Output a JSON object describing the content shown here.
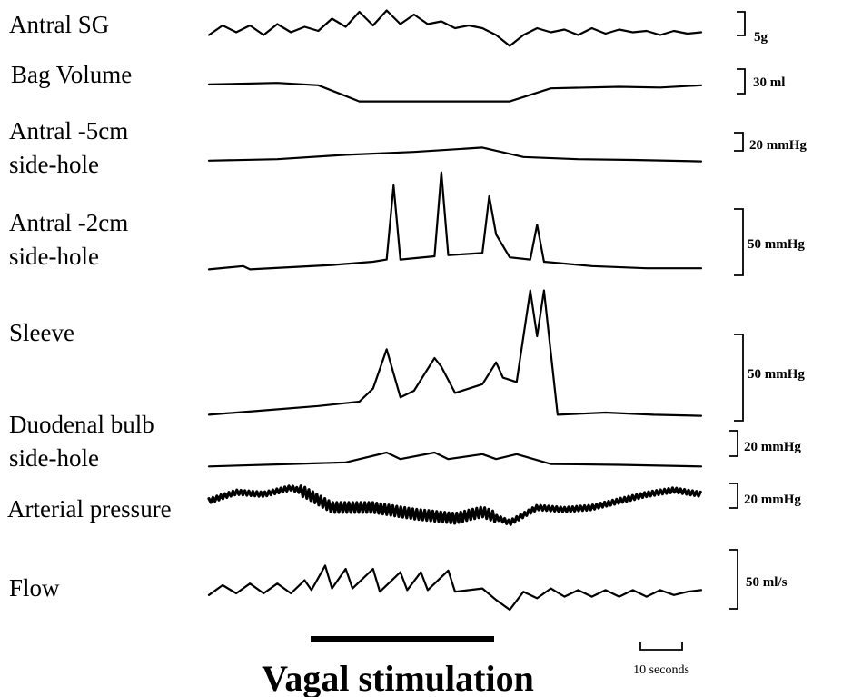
{
  "chart_data": {
    "type": "line",
    "x_unit": "seconds",
    "x_range": [
      0,
      95
    ],
    "stimulation": {
      "label": "Vagal stimulation",
      "start": 14,
      "end": 39
    },
    "time_scale": {
      "label": "10 seconds",
      "value": 10
    },
    "series": [
      {
        "name": "Antral SG",
        "scale": "5g",
        "amp": 6,
        "pts": [
          [
            0,
            2.2
          ],
          [
            2,
            3.6
          ],
          [
            4,
            2.6
          ],
          [
            6,
            3.6
          ],
          [
            8,
            2.2
          ],
          [
            10,
            3.8
          ],
          [
            12,
            2.6
          ],
          [
            14,
            3.4
          ],
          [
            16,
            2.8
          ],
          [
            18,
            4.6
          ],
          [
            20,
            3.4
          ],
          [
            22,
            5.6
          ],
          [
            24,
            3.6
          ],
          [
            26,
            5.8
          ],
          [
            28,
            3.8
          ],
          [
            30,
            5.2
          ],
          [
            32,
            3.8
          ],
          [
            34,
            4.2
          ],
          [
            36,
            3.2
          ],
          [
            38,
            3.6
          ],
          [
            40,
            3.2
          ],
          [
            42,
            2.2
          ],
          [
            44,
            0.6
          ],
          [
            46,
            2.2
          ],
          [
            48,
            3.2
          ],
          [
            50,
            2.6
          ],
          [
            52,
            3.0
          ],
          [
            54,
            2.2
          ],
          [
            56,
            3.2
          ],
          [
            58,
            2.4
          ],
          [
            60,
            3.0
          ],
          [
            62,
            2.6
          ],
          [
            64,
            2.8
          ],
          [
            66,
            2.2
          ],
          [
            68,
            2.8
          ],
          [
            70,
            2.4
          ],
          [
            72,
            2.6
          ]
        ]
      },
      {
        "name": "Bag Volume",
        "scale": "30 ml",
        "amp": 4,
        "pts": [
          [
            0,
            2.6
          ],
          [
            10,
            2.8
          ],
          [
            16,
            2.5
          ],
          [
            22,
            0.4
          ],
          [
            44,
            0.4
          ],
          [
            50,
            2.1
          ],
          [
            60,
            2.3
          ],
          [
            66,
            2.2
          ],
          [
            72,
            2.5
          ]
        ]
      },
      {
        "name": "Antral -5cm side-hole",
        "scale": "20 mmHg",
        "amp": 4,
        "pts": [
          [
            0,
            0.4
          ],
          [
            10,
            0.6
          ],
          [
            20,
            1.2
          ],
          [
            30,
            1.6
          ],
          [
            40,
            2.2
          ],
          [
            46,
            0.9
          ],
          [
            54,
            0.6
          ],
          [
            62,
            0.5
          ],
          [
            72,
            0.3
          ]
        ]
      },
      {
        "name": "Antral -2cm side-hole",
        "scale": "50 mmHg",
        "amp": 12,
        "pts": [
          [
            0,
            0.3
          ],
          [
            5,
            0.6
          ],
          [
            6,
            0.3
          ],
          [
            18,
            0.7
          ],
          [
            24,
            1.0
          ],
          [
            26,
            1.2
          ],
          [
            27,
            8.0
          ],
          [
            28,
            1.2
          ],
          [
            33,
            1.5
          ],
          [
            34,
            9.2
          ],
          [
            35,
            1.6
          ],
          [
            40,
            1.8
          ],
          [
            41,
            7.0
          ],
          [
            42,
            3.5
          ],
          [
            44,
            1.4
          ],
          [
            47,
            1.2
          ],
          [
            48,
            4.4
          ],
          [
            49,
            1.0
          ],
          [
            56,
            0.6
          ],
          [
            64,
            0.4
          ],
          [
            72,
            0.4
          ]
        ]
      },
      {
        "name": "Sleeve",
        "scale": "50 mmHg",
        "amp": 15,
        "pts": [
          [
            0,
            0.8
          ],
          [
            8,
            1.2
          ],
          [
            16,
            1.6
          ],
          [
            22,
            2.0
          ],
          [
            24,
            3.2
          ],
          [
            26,
            6.8
          ],
          [
            28,
            2.4
          ],
          [
            30,
            3.0
          ],
          [
            33,
            6.0
          ],
          [
            34,
            5.2
          ],
          [
            36,
            2.8
          ],
          [
            40,
            3.6
          ],
          [
            42,
            5.6
          ],
          [
            43,
            4.2
          ],
          [
            45,
            3.8
          ],
          [
            47,
            12.2
          ],
          [
            48,
            8.0
          ],
          [
            49,
            12.2
          ],
          [
            51,
            0.8
          ],
          [
            58,
            1.0
          ],
          [
            65,
            0.8
          ],
          [
            72,
            0.7
          ]
        ]
      },
      {
        "name": "Duodenal bulb side-hole",
        "scale": "20 mmHg",
        "amp": 4,
        "pts": [
          [
            0,
            0.3
          ],
          [
            12,
            0.6
          ],
          [
            20,
            0.8
          ],
          [
            26,
            2.0
          ],
          [
            28,
            1.2
          ],
          [
            33,
            2.0
          ],
          [
            35,
            1.2
          ],
          [
            40,
            1.8
          ],
          [
            42,
            1.2
          ],
          [
            45,
            1.8
          ],
          [
            50,
            0.6
          ],
          [
            60,
            0.5
          ],
          [
            72,
            0.3
          ]
        ]
      },
      {
        "name": "Arterial pressure",
        "scale": "20 mmHg",
        "amp": 5,
        "pts": [
          [
            0,
            2.4
          ],
          [
            4,
            3.2
          ],
          [
            8,
            3.0
          ],
          [
            12,
            3.6
          ],
          [
            14,
            3.2
          ],
          [
            18,
            1.8
          ],
          [
            24,
            1.8
          ],
          [
            30,
            1.2
          ],
          [
            36,
            0.8
          ],
          [
            40,
            1.4
          ],
          [
            44,
            0.4
          ],
          [
            48,
            1.8
          ],
          [
            52,
            1.6
          ],
          [
            56,
            1.8
          ],
          [
            60,
            2.4
          ],
          [
            64,
            3.0
          ],
          [
            68,
            3.4
          ],
          [
            72,
            3.0
          ]
        ]
      },
      {
        "name": "Flow",
        "scale": "50 ml/s",
        "amp": 10,
        "pts": [
          [
            0,
            2.8
          ],
          [
            2,
            4.0
          ],
          [
            4,
            3.0
          ],
          [
            6,
            4.2
          ],
          [
            8,
            3.0
          ],
          [
            10,
            4.2
          ],
          [
            12,
            3.0
          ],
          [
            14,
            4.6
          ],
          [
            15,
            3.4
          ],
          [
            17,
            6.4
          ],
          [
            18,
            3.6
          ],
          [
            20,
            6.0
          ],
          [
            21,
            3.6
          ],
          [
            24,
            6.0
          ],
          [
            25,
            3.2
          ],
          [
            28,
            5.6
          ],
          [
            29,
            3.4
          ],
          [
            31,
            5.6
          ],
          [
            32,
            3.4
          ],
          [
            35,
            5.8
          ],
          [
            36,
            3.2
          ],
          [
            40,
            3.6
          ],
          [
            42,
            2.2
          ],
          [
            44,
            1.0
          ],
          [
            46,
            3.2
          ],
          [
            48,
            2.4
          ],
          [
            50,
            3.6
          ],
          [
            52,
            2.6
          ],
          [
            54,
            3.4
          ],
          [
            56,
            2.6
          ],
          [
            58,
            3.4
          ],
          [
            60,
            2.6
          ],
          [
            62,
            3.4
          ],
          [
            64,
            2.6
          ],
          [
            66,
            3.4
          ],
          [
            68,
            2.8
          ],
          [
            70,
            3.2
          ],
          [
            72,
            3.4
          ]
        ]
      }
    ]
  }
}
